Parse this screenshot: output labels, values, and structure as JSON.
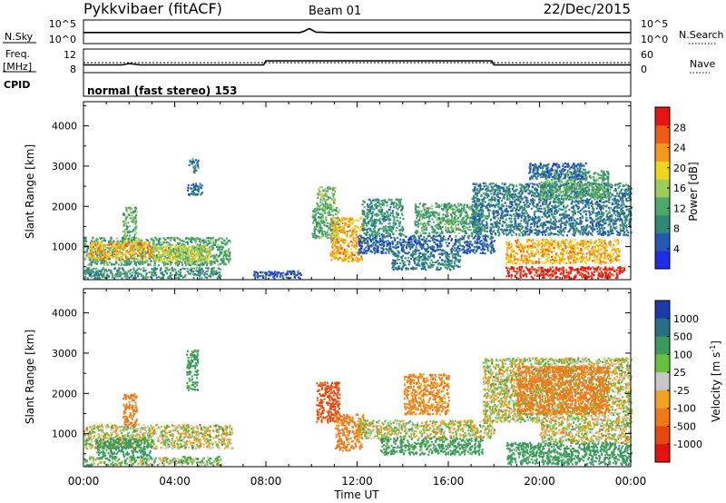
{
  "header": {
    "station": "Pykkvibaer (fitACF)",
    "beam": "Beam 01",
    "date": "22/Dec/2015"
  },
  "sky_panel": {
    "left_label": "N.Sky",
    "right_label": "N.Search",
    "left_ticks": [
      "10^5",
      "10^0"
    ],
    "right_ticks": [
      "10^5",
      "10^0"
    ]
  },
  "freq_panel": {
    "label_line1": "Freq.",
    "label_line2": "[MHz]",
    "left_ticks": [
      "12",
      "8"
    ],
    "right_label": "Nave",
    "right_ticks": [
      "60",
      "0"
    ],
    "cpid_label": "CPID",
    "mode_text": "normal (fast stereo) 153"
  },
  "time_axis": {
    "title": "Time UT",
    "ticks": [
      "00:00",
      "04:00",
      "08:00",
      "12:00",
      "16:00",
      "20:00",
      "00:00"
    ],
    "range_hours": [
      0,
      24
    ]
  },
  "range_axis": {
    "label": "Slant Range [km]",
    "ticks": [
      "1000",
      "2000",
      "3000",
      "4000"
    ],
    "range_km": [
      180,
      4600
    ]
  },
  "power_scale": {
    "label": "Power [dB]",
    "ticks": [
      "4",
      "8",
      "12",
      "16",
      "20",
      "24",
      "28"
    ],
    "range": [
      0,
      32
    ],
    "colors": [
      "#1d2ee6",
      "#2557b4",
      "#2e8a72",
      "#4ea86a",
      "#9ccc5a",
      "#f0d51a",
      "#f39a1b",
      "#ef5a16",
      "#e8140f"
    ]
  },
  "velocity_scale": {
    "label": "Velocity [m s-1]",
    "label_main": "Velocity [m s",
    "label_sup": "-1",
    "label_end": "]",
    "ticks": [
      "1000",
      "500",
      "100",
      "25",
      "-25",
      "-100",
      "-500",
      "-1000"
    ],
    "colors": [
      "#1b3ca8",
      "#266f86",
      "#3a9a5c",
      "#66c23a",
      "#c7c7c7",
      "#f0a31e",
      "#f07a18",
      "#e8470f",
      "#e3120d"
    ]
  },
  "chart_data": [
    {
      "type": "line",
      "title": "N.Sky / N.Search",
      "series": [
        {
          "name": "N.Sky",
          "x": [
            0,
            9.5,
            9.7,
            9.9,
            10.2,
            10.8,
            24
          ],
          "y": [
            3.3,
            3.3,
            3.8,
            4.6,
            3.4,
            3.3,
            3.3
          ]
        }
      ]
    },
    {
      "type": "line",
      "title": "Freq. [MHz]",
      "series": [
        {
          "name": "Freq.",
          "x": [
            0,
            1.7,
            2.0,
            2.5,
            7.9,
            8.0,
            17.9,
            18.0,
            24
          ],
          "y": [
            10.0,
            10.0,
            10.4,
            10.0,
            10.0,
            11.2,
            11.2,
            10.0,
            10.0
          ]
        },
        {
          "name": "Nave",
          "x": [
            0,
            24
          ],
          "y": [
            40,
            40
          ]
        }
      ]
    },
    {
      "type": "heatmap",
      "title": "Power [dB]",
      "x_unit": "hours UT",
      "y_unit": "km",
      "regions": [
        {
          "x": [
            0.0,
            6.4
          ],
          "y": [
            550,
            1250
          ],
          "value": 12
        },
        {
          "x": [
            0.2,
            3.0
          ],
          "y": [
            700,
            1150
          ],
          "value": 22
        },
        {
          "x": [
            3.0,
            5.5
          ],
          "y": [
            650,
            1050
          ],
          "value": 18
        },
        {
          "x": [
            0.0,
            6.0
          ],
          "y": [
            230,
            500
          ],
          "value": 10
        },
        {
          "x": [
            4.6,
            5.0
          ],
          "y": [
            2850,
            3200
          ],
          "value": 8
        },
        {
          "x": [
            4.5,
            5.2
          ],
          "y": [
            2300,
            2600
          ],
          "value": 6
        },
        {
          "x": [
            1.7,
            2.3
          ],
          "y": [
            1200,
            2000
          ],
          "value": 13
        },
        {
          "x": [
            10.0,
            11.2
          ],
          "y": [
            1200,
            2000
          ],
          "value": 12
        },
        {
          "x": [
            10.8,
            12.2
          ],
          "y": [
            650,
            1750
          ],
          "value": 22
        },
        {
          "x": [
            10.2,
            11.0
          ],
          "y": [
            1950,
            2500
          ],
          "value": 14
        },
        {
          "x": [
            12.0,
            18.0
          ],
          "y": [
            850,
            1300
          ],
          "value": 6
        },
        {
          "x": [
            12.2,
            14.0
          ],
          "y": [
            1300,
            2200
          ],
          "value": 10
        },
        {
          "x": [
            14.5,
            17.5
          ],
          "y": [
            1350,
            2100
          ],
          "value": 12
        },
        {
          "x": [
            13.5,
            16.5
          ],
          "y": [
            450,
            850
          ],
          "value": 8
        },
        {
          "x": [
            17.0,
            24.0
          ],
          "y": [
            1300,
            2600
          ],
          "value": 8
        },
        {
          "x": [
            18.5,
            23.5
          ],
          "y": [
            600,
            1200
          ],
          "value": 22
        },
        {
          "x": [
            18.5,
            23.7
          ],
          "y": [
            230,
            520
          ],
          "value": 30
        },
        {
          "x": [
            20.0,
            23.0
          ],
          "y": [
            2200,
            2900
          ],
          "value": 12
        },
        {
          "x": [
            19.5,
            22.0
          ],
          "y": [
            2700,
            3100
          ],
          "value": 6
        },
        {
          "x": [
            7.4,
            9.5
          ],
          "y": [
            230,
            420
          ],
          "value": 5
        }
      ]
    },
    {
      "type": "heatmap",
      "title": "Velocity [m s-1]",
      "x_unit": "hours UT",
      "y_unit": "km",
      "regions": [
        {
          "x": [
            0.0,
            6.5
          ],
          "y": [
            650,
            1250
          ],
          "value": 0
        },
        {
          "x": [
            0.5,
            3.0
          ],
          "y": [
            400,
            900
          ],
          "value": 300
        },
        {
          "x": [
            0.0,
            6.0
          ],
          "y": [
            230,
            450
          ],
          "value": 60
        },
        {
          "x": [
            1.7,
            2.3
          ],
          "y": [
            1200,
            2000
          ],
          "value": -300
        },
        {
          "x": [
            4.5,
            5.0
          ],
          "y": [
            2100,
            3100
          ],
          "value": 200
        },
        {
          "x": [
            10.2,
            11.2
          ],
          "y": [
            1300,
            2300
          ],
          "value": -600
        },
        {
          "x": [
            11.0,
            12.3
          ],
          "y": [
            600,
            1500
          ],
          "value": -200
        },
        {
          "x": [
            12.0,
            18.0
          ],
          "y": [
            900,
            1350
          ],
          "value": 0
        },
        {
          "x": [
            13.0,
            17.5
          ],
          "y": [
            500,
            900
          ],
          "value": 200
        },
        {
          "x": [
            14.0,
            16.0
          ],
          "y": [
            1500,
            2500
          ],
          "value": -150
        },
        {
          "x": [
            17.5,
            24.0
          ],
          "y": [
            1300,
            2900
          ],
          "value": 0
        },
        {
          "x": [
            19.0,
            23.0
          ],
          "y": [
            1500,
            2700
          ],
          "value": -300
        },
        {
          "x": [
            18.5,
            24.0
          ],
          "y": [
            250,
            800
          ],
          "value": 300
        },
        {
          "x": [
            20.0,
            24.0
          ],
          "y": [
            800,
            1300
          ],
          "value": 0
        }
      ]
    }
  ]
}
